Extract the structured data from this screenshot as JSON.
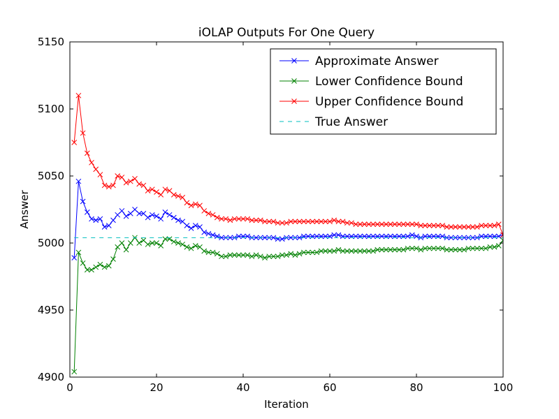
{
  "chart_data": {
    "type": "line",
    "title": "iOLAP Outputs For One Query",
    "xlabel": "Iteration",
    "ylabel": "Answer",
    "xlim": [
      0,
      100
    ],
    "ylim": [
      4900,
      5150
    ],
    "xticks": [
      "0",
      "20",
      "40",
      "60",
      "80",
      "100"
    ],
    "yticks": [
      "4900",
      "4950",
      "5000",
      "5050",
      "5100",
      "5150"
    ],
    "grid": false,
    "legend_position": "top-right",
    "true_answer": 5004,
    "series": [
      {
        "name": "Approximate Answer",
        "color": "#0000ff",
        "marker": "x",
        "values": [
          4989,
          5046,
          5031,
          5023,
          5018,
          5017,
          5018,
          5012,
          5013,
          5017,
          5021,
          5024,
          5020,
          5022,
          5025,
          5022,
          5022,
          5019,
          5021,
          5020,
          5018,
          5023,
          5021,
          5019,
          5017,
          5016,
          5013,
          5011,
          5013,
          5012,
          5008,
          5007,
          5006,
          5005,
          5004,
          5004,
          5004,
          5004,
          5005,
          5005,
          5005,
          5004,
          5004,
          5004,
          5004,
          5004,
          5004,
          5003,
          5003,
          5004,
          5004,
          5004,
          5004,
          5005,
          5005,
          5005,
          5005,
          5005,
          5005,
          5005,
          5006,
          5006,
          5005,
          5005,
          5005,
          5005,
          5005,
          5005,
          5005,
          5005,
          5005,
          5005,
          5005,
          5005,
          5005,
          5005,
          5005,
          5005,
          5006,
          5005,
          5004,
          5005,
          5005,
          5005,
          5005,
          5005,
          5004,
          5004,
          5004,
          5004,
          5004,
          5004,
          5004,
          5004,
          5005,
          5005,
          5005,
          5005,
          5005,
          5006
        ]
      },
      {
        "name": "Lower Confidence Bound",
        "color": "#008000",
        "marker": "x",
        "values": [
          4904,
          4993,
          4985,
          4980,
          4980,
          4982,
          4984,
          4982,
          4983,
          4988,
          4997,
          5000,
          4995,
          5000,
          5004,
          5000,
          5002,
          4999,
          5000,
          5000,
          4998,
          5003,
          5003,
          5001,
          5000,
          4999,
          4997,
          4996,
          4998,
          4997,
          4994,
          4993,
          4993,
          4992,
          4990,
          4990,
          4991,
          4991,
          4991,
          4991,
          4991,
          4990,
          4991,
          4990,
          4989,
          4990,
          4990,
          4990,
          4991,
          4991,
          4992,
          4991,
          4992,
          4993,
          4993,
          4993,
          4993,
          4994,
          4994,
          4994,
          4994,
          4995,
          4994,
          4994,
          4994,
          4994,
          4994,
          4994,
          4994,
          4994,
          4995,
          4995,
          4995,
          4995,
          4995,
          4995,
          4995,
          4996,
          4996,
          4996,
          4995,
          4996,
          4996,
          4996,
          4996,
          4996,
          4995,
          4995,
          4995,
          4995,
          4995,
          4996,
          4996,
          4996,
          4996,
          4996,
          4997,
          4997,
          4998,
          5002
        ]
      },
      {
        "name": "Upper Confidence Bound",
        "color": "#ff0000",
        "marker": "x",
        "values": [
          5075,
          5110,
          5082,
          5067,
          5060,
          5055,
          5051,
          5043,
          5042,
          5043,
          5050,
          5049,
          5045,
          5046,
          5048,
          5044,
          5043,
          5039,
          5040,
          5038,
          5036,
          5040,
          5039,
          5036,
          5035,
          5034,
          5030,
          5028,
          5029,
          5028,
          5024,
          5022,
          5021,
          5019,
          5018,
          5018,
          5017,
          5018,
          5018,
          5018,
          5018,
          5017,
          5017,
          5017,
          5016,
          5016,
          5016,
          5015,
          5015,
          5015,
          5016,
          5016,
          5016,
          5016,
          5016,
          5016,
          5016,
          5016,
          5016,
          5016,
          5017,
          5016,
          5016,
          5015,
          5015,
          5014,
          5014,
          5014,
          5014,
          5014,
          5014,
          5014,
          5014,
          5014,
          5014,
          5014,
          5014,
          5014,
          5014,
          5014,
          5013,
          5013,
          5013,
          5013,
          5013,
          5013,
          5012,
          5012,
          5012,
          5012,
          5012,
          5012,
          5012,
          5012,
          5013,
          5013,
          5013,
          5013,
          5014,
          5006
        ]
      },
      {
        "name": "True Answer",
        "color": "#00bfbf",
        "dashed": true
      }
    ]
  }
}
